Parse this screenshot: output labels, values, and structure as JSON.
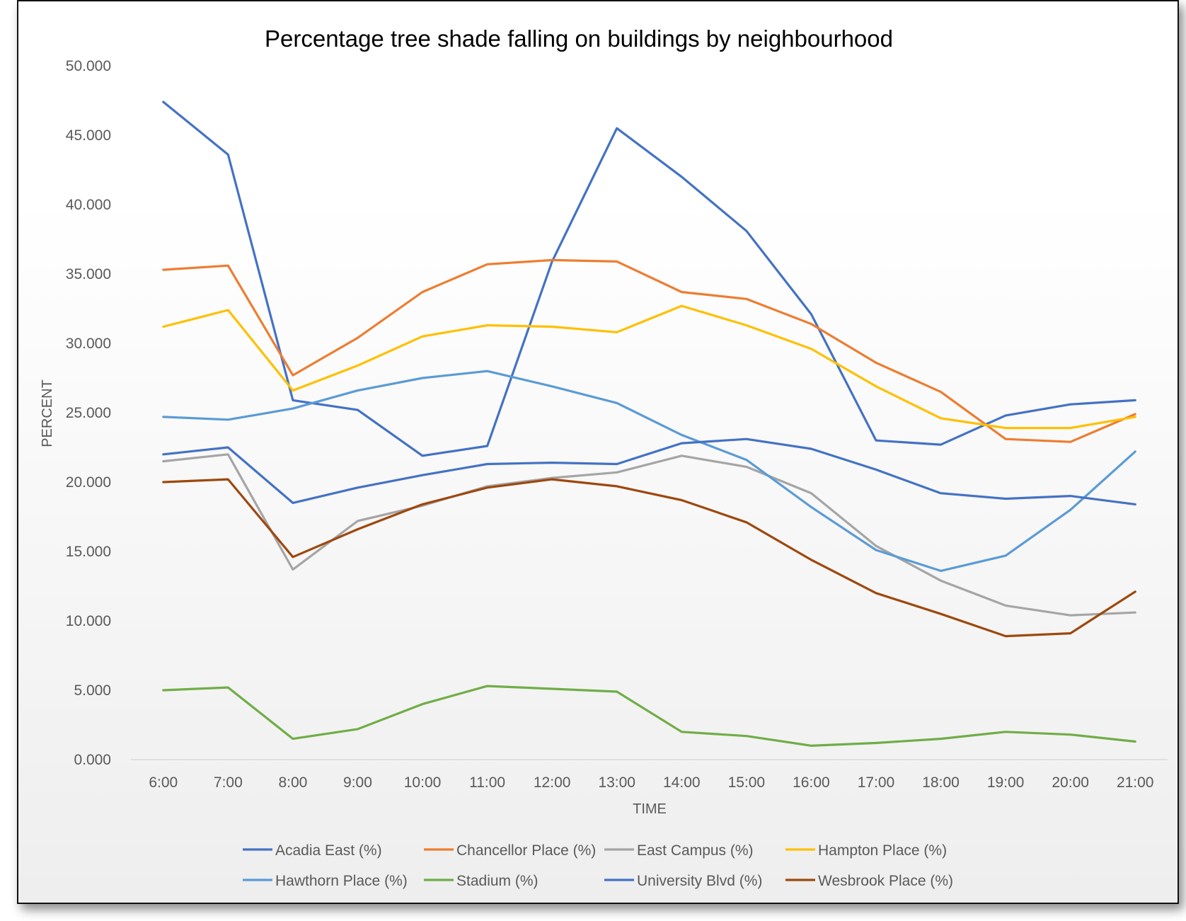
{
  "chart_data": {
    "type": "line",
    "title": "Percentage tree shade falling on buildings by neighbourhood",
    "xlabel": "TIME",
    "ylabel": "PERCENT",
    "ylim": [
      0,
      50
    ],
    "y_ticks": [
      "0.000",
      "5.000",
      "10.000",
      "15.000",
      "20.000",
      "25.000",
      "30.000",
      "35.000",
      "40.000",
      "45.000",
      "50.000"
    ],
    "grid": false,
    "legend_position": "bottom",
    "categories": [
      "6:00",
      "7:00",
      "8:00",
      "9:00",
      "10:00",
      "11:00",
      "12:00",
      "13:00",
      "14:00",
      "15:00",
      "16:00",
      "17:00",
      "18:00",
      "19:00",
      "20:00",
      "21:00"
    ],
    "series": [
      {
        "name": "Acadia East (%)",
        "color": "#4472C4",
        "values": [
          47.4,
          43.6,
          25.9,
          25.2,
          21.9,
          22.6,
          35.9,
          45.5,
          42.0,
          38.1,
          32.1,
          23.0,
          22.7,
          24.8,
          25.6,
          25.9
        ]
      },
      {
        "name": "Chancellor Place (%)",
        "color": "#ED7D31",
        "values": [
          35.3,
          35.6,
          27.7,
          30.4,
          33.7,
          35.7,
          36.0,
          35.9,
          33.7,
          33.2,
          31.4,
          28.6,
          26.5,
          23.1,
          22.9,
          24.9
        ]
      },
      {
        "name": "East Campus (%)",
        "color": "#A5A5A5",
        "values": [
          21.5,
          22.0,
          13.7,
          17.2,
          18.3,
          19.7,
          20.3,
          20.7,
          21.9,
          21.1,
          19.2,
          15.4,
          12.9,
          11.1,
          10.4,
          10.6
        ]
      },
      {
        "name": "Hampton Place (%)",
        "color": "#FFC000",
        "values": [
          31.2,
          32.4,
          26.6,
          28.4,
          30.5,
          31.3,
          31.2,
          30.8,
          32.7,
          31.3,
          29.6,
          26.9,
          24.6,
          23.9,
          23.9,
          24.7
        ]
      },
      {
        "name": "Hawthorn Place (%)",
        "color": "#5B9BD5",
        "values": [
          24.7,
          24.5,
          25.3,
          26.6,
          27.5,
          28.0,
          26.9,
          25.7,
          23.4,
          21.6,
          18.2,
          15.1,
          13.6,
          14.7,
          18.0,
          22.2
        ]
      },
      {
        "name": "Stadium (%)",
        "color": "#70AD47",
        "values": [
          5.0,
          5.2,
          1.5,
          2.2,
          4.0,
          5.3,
          5.1,
          4.9,
          2.0,
          1.7,
          1.0,
          1.2,
          1.5,
          2.0,
          1.8,
          1.3
        ]
      },
      {
        "name": "University Blvd (%)",
        "color": "#4472C4",
        "values": [
          22.0,
          22.5,
          18.5,
          19.6,
          20.5,
          21.3,
          21.4,
          21.3,
          22.8,
          23.1,
          22.4,
          20.9,
          19.2,
          18.8,
          19.0,
          18.4
        ]
      },
      {
        "name": "Wesbrook Place (%)",
        "color": "#9E480E",
        "values": [
          20.0,
          20.2,
          14.6,
          16.6,
          18.4,
          19.6,
          20.2,
          19.7,
          18.7,
          17.1,
          14.4,
          12.0,
          10.5,
          8.9,
          9.1,
          12.1
        ]
      }
    ]
  }
}
